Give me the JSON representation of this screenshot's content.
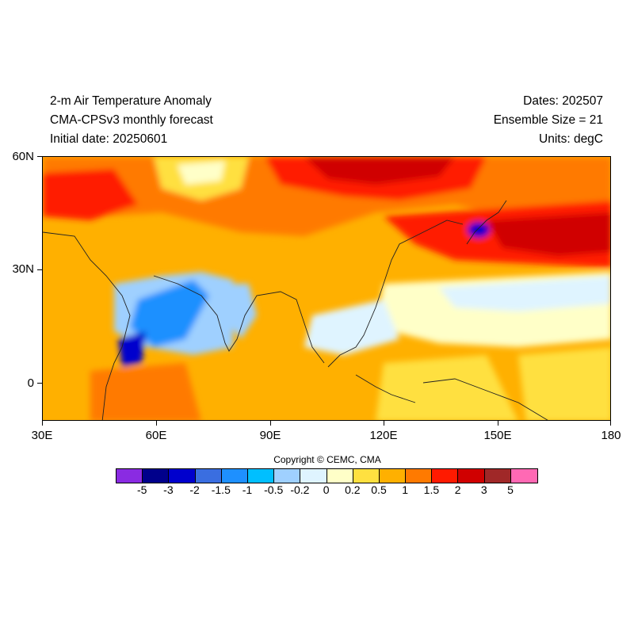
{
  "header": {
    "title": "2-m Air Temperature Anomaly",
    "model": "CMA-CPSv3 monthly forecast",
    "initial_date": "Initial date: 20250601",
    "dates": "Dates: 202507",
    "ensemble": "Ensemble Size = 21",
    "units": "Units: degC"
  },
  "map": {
    "lat_labels": [
      "60N",
      "30N",
      "0"
    ],
    "lon_labels": [
      "30E",
      "60E",
      "90E",
      "120E",
      "150E",
      "180"
    ],
    "lon_range": [
      30,
      180
    ],
    "lat_range": [
      -10,
      60
    ]
  },
  "copyright": "Copyright © CEMC, CMA",
  "colorbar": {
    "colors": [
      "#8a2be2",
      "#00008b",
      "#0000cd",
      "#3a6ee0",
      "#1e90ff",
      "#00bfff",
      "#9fd0ff",
      "#dff4ff",
      "#ffffc8",
      "#ffe040",
      "#ffb000",
      "#ff7a00",
      "#ff1a00",
      "#d00000",
      "#a02828",
      "#ff69b4"
    ],
    "labels": [
      "-5",
      "-3",
      "-2",
      "-1.5",
      "-1",
      "-0.5",
      "-0.2",
      "0",
      "0.2",
      "0.5",
      "1",
      "1.5",
      "2",
      "3",
      "5"
    ]
  }
}
